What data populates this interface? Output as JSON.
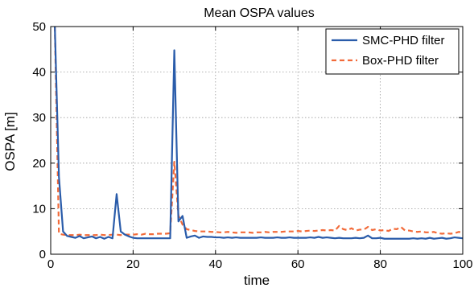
{
  "chart_data": {
    "type": "line",
    "title": "Mean OSPA values",
    "xlabel": "time",
    "ylabel": "OSPA [m]",
    "xlim": [
      0,
      100
    ],
    "ylim": [
      0,
      50
    ],
    "xticks": [
      0,
      20,
      40,
      60,
      80,
      100
    ],
    "yticks": [
      0,
      10,
      20,
      30,
      40,
      50
    ],
    "grid": true,
    "legend_position": "top-right",
    "series": [
      {
        "name": "SMC-PHD filter",
        "color": "#2a5caa",
        "style": "solid",
        "x": [
          1,
          2,
          3,
          4,
          5,
          6,
          7,
          8,
          9,
          10,
          11,
          12,
          13,
          14,
          15,
          16,
          17,
          18,
          19,
          20,
          21,
          22,
          23,
          24,
          25,
          26,
          27,
          28,
          29,
          30,
          31,
          32,
          33,
          34,
          35,
          36,
          37,
          38,
          39,
          40,
          41,
          42,
          43,
          44,
          45,
          46,
          47,
          48,
          49,
          50,
          51,
          52,
          53,
          54,
          55,
          56,
          57,
          58,
          59,
          60,
          61,
          62,
          63,
          64,
          65,
          66,
          67,
          68,
          69,
          70,
          71,
          72,
          73,
          74,
          75,
          76,
          77,
          78,
          79,
          80,
          81,
          82,
          83,
          84,
          85,
          86,
          87,
          88,
          89,
          90,
          91,
          92,
          93,
          94,
          95,
          96,
          97,
          98,
          99,
          100
        ],
        "y": [
          50,
          17,
          5,
          4,
          3.8,
          3.6,
          4,
          3.5,
          3.7,
          3.9,
          3.5,
          3.8,
          3.4,
          3.8,
          3.5,
          13.2,
          5,
          4.3,
          3.9,
          3.6,
          3.5,
          3.5,
          3.5,
          3.5,
          3.5,
          3.5,
          3.5,
          3.5,
          3.5,
          44.8,
          7.2,
          8.4,
          3.6,
          3.9,
          4.1,
          3.6,
          3.9,
          3.8,
          3.8,
          3.7,
          3.7,
          3.6,
          3.7,
          3.6,
          3.7,
          3.6,
          3.6,
          3.6,
          3.6,
          3.6,
          3.7,
          3.6,
          3.6,
          3.6,
          3.7,
          3.6,
          3.6,
          3.7,
          3.6,
          3.6,
          3.6,
          3.6,
          3.7,
          3.6,
          3.8,
          3.6,
          3.7,
          3.6,
          3.5,
          3.6,
          3.5,
          3.5,
          3.5,
          3.6,
          3.5,
          3.6,
          4.1,
          3.5,
          3.5,
          3.6,
          3.4,
          3.4,
          3.4,
          3.4,
          3.4,
          3.4,
          3.4,
          3.5,
          3.4,
          3.5,
          3.4,
          3.6,
          3.4,
          3.5,
          3.6,
          3.4,
          3.5,
          3.7,
          3.6,
          3.5
        ]
      },
      {
        "name": "Box-PHD filter",
        "color": "#f26b3a",
        "style": "dashed",
        "x": [
          1,
          2,
          3,
          4,
          5,
          6,
          7,
          8,
          9,
          10,
          11,
          12,
          13,
          14,
          15,
          16,
          17,
          18,
          19,
          20,
          21,
          22,
          23,
          24,
          25,
          26,
          27,
          28,
          29,
          30,
          31,
          32,
          33,
          34,
          35,
          36,
          37,
          38,
          39,
          40,
          41,
          42,
          43,
          44,
          45,
          46,
          47,
          48,
          49,
          50,
          51,
          52,
          53,
          54,
          55,
          56,
          57,
          58,
          59,
          60,
          61,
          62,
          63,
          64,
          65,
          66,
          67,
          68,
          69,
          70,
          71,
          72,
          73,
          74,
          75,
          76,
          77,
          78,
          79,
          80,
          81,
          82,
          83,
          84,
          85,
          86,
          87,
          88,
          89,
          90,
          91,
          92,
          93,
          94,
          95,
          96,
          97,
          98,
          99,
          100
        ],
        "y": [
          50,
          4.5,
          4.3,
          4.2,
          4.2,
          4.2,
          4.3,
          4.2,
          4.2,
          4.2,
          4.2,
          4.3,
          4.2,
          4.2,
          4.3,
          4.3,
          4.2,
          4.3,
          4.3,
          4.3,
          4.4,
          4.3,
          4.5,
          4.4,
          4.4,
          4.5,
          4.5,
          4.5,
          4.6,
          20.3,
          8.5,
          6.5,
          5.5,
          5.3,
          5.1,
          5,
          5,
          5,
          4.9,
          4.9,
          4.8,
          4.8,
          4.9,
          4.8,
          4.7,
          4.8,
          4.8,
          4.8,
          4.7,
          4.8,
          4.8,
          4.9,
          4.8,
          4.9,
          4.9,
          4.9,
          5,
          5,
          5,
          5.1,
          5,
          5.1,
          5.2,
          5.1,
          5.2,
          5.3,
          5.2,
          5.3,
          5.2,
          6.2,
          5.5,
          5.3,
          5.7,
          5.2,
          5.4,
          5.4,
          6,
          5.3,
          5.5,
          5.2,
          5.3,
          5.1,
          5.6,
          5.5,
          6,
          5.2,
          5.2,
          5,
          4.9,
          5,
          4.8,
          4.8,
          4.9,
          4.6,
          4.5,
          4.6,
          4.5,
          4.6,
          4.9,
          4.8
        ]
      }
    ]
  }
}
